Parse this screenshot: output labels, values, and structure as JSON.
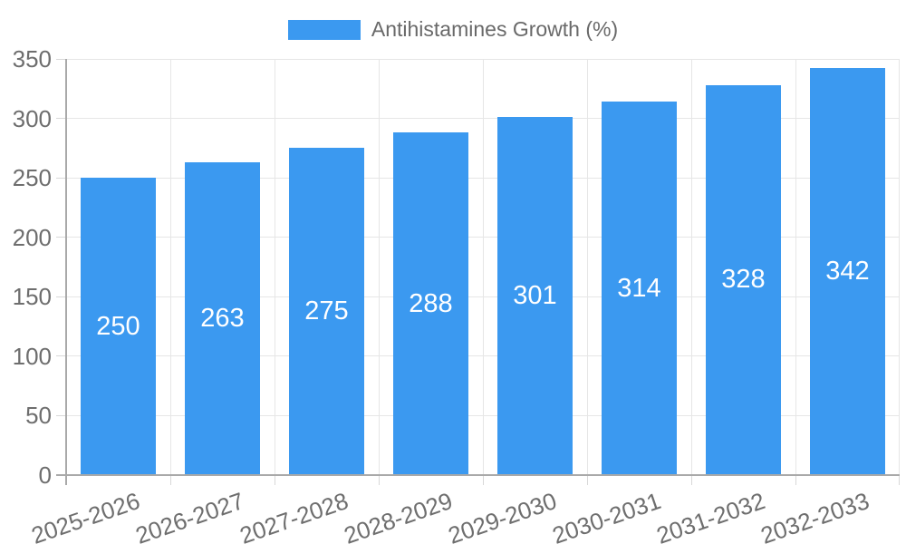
{
  "chart_data": {
    "type": "bar",
    "title": "",
    "xlabel": "",
    "ylabel": "",
    "legend": {
      "label": "Antihistamines Growth (%)",
      "position": "top"
    },
    "categories": [
      "2025-2026",
      "2026-2027",
      "2027-2028",
      "2028-2029",
      "2029-2030",
      "2030-2031",
      "2031-2032",
      "2032-2033"
    ],
    "series": [
      {
        "name": "Antihistamines Growth (%)",
        "values": [
          250,
          263,
          275,
          288,
          301,
          314,
          328,
          342
        ]
      }
    ],
    "value_labels": [
      "250",
      "263",
      "275",
      "288",
      "301",
      "314",
      "328",
      "342"
    ],
    "ylim": [
      0,
      350
    ],
    "yticks": [
      0,
      50,
      100,
      150,
      200,
      250,
      300,
      350
    ],
    "grid": true,
    "colors": {
      "bar": "#3B99F0",
      "bar_label": "#FFFFFF",
      "grid": "#E6E6E6",
      "axis": "#A9A9A9",
      "tick_mark": "#D8D8D8",
      "tick_text": "#6E6E6E",
      "legend_text": "#696969",
      "background": "#FFFFFF"
    }
  }
}
